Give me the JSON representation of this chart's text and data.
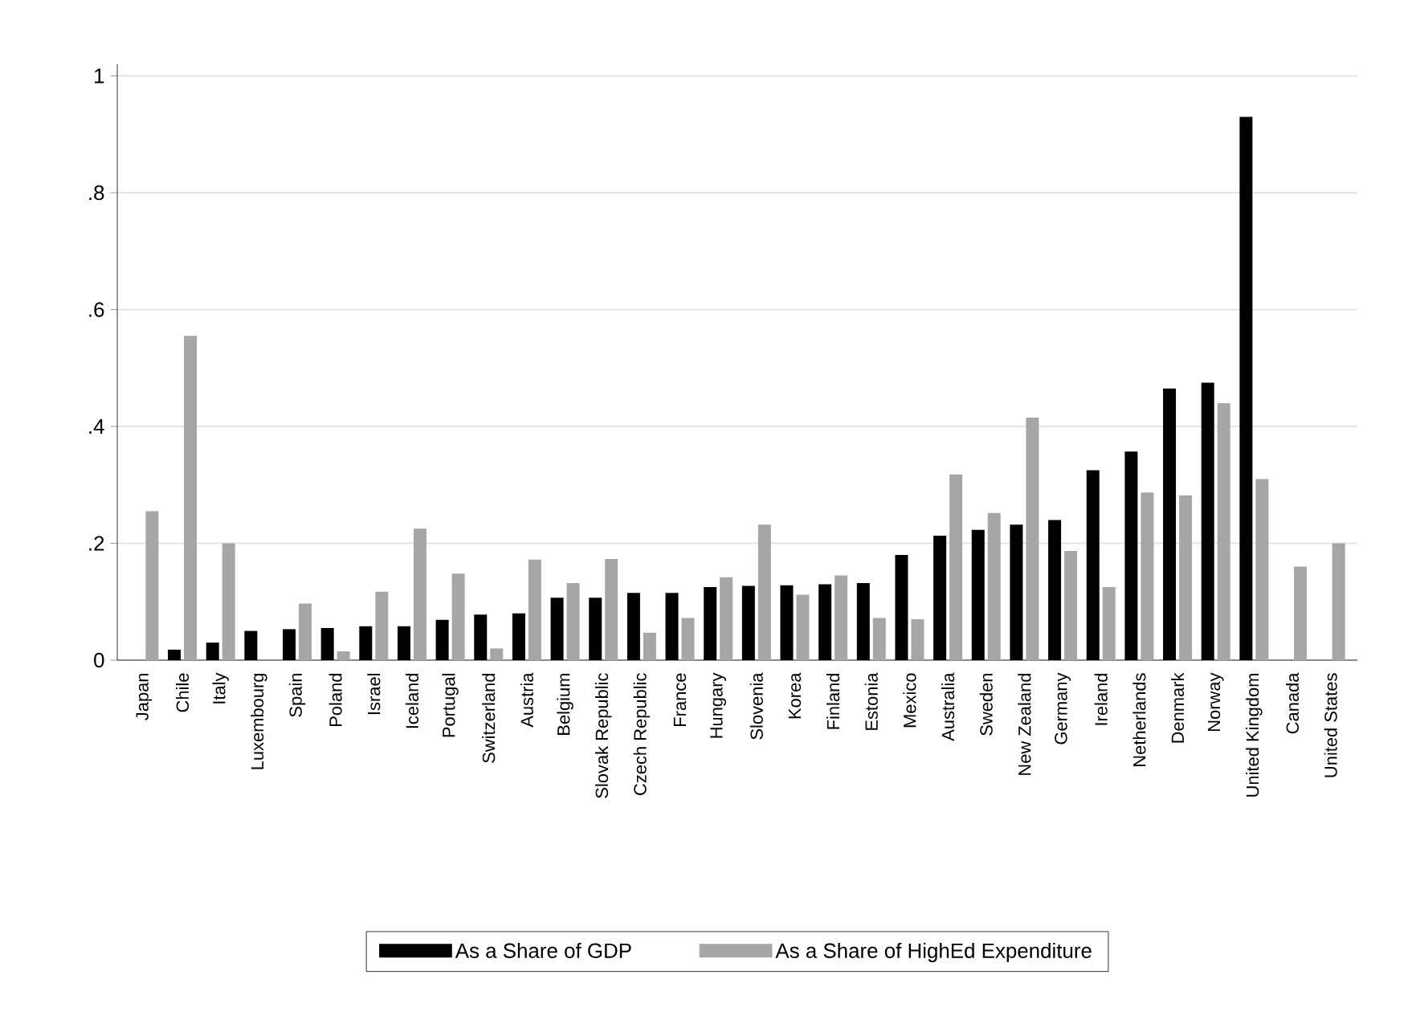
{
  "chart_data": {
    "type": "bar",
    "categories": [
      "Japan",
      "Chile",
      "Italy",
      "Luxembourg",
      "Spain",
      "Poland",
      "Israel",
      "Iceland",
      "Portugal",
      "Switzerland",
      "Austria",
      "Belgium",
      "Slovak Republic",
      "Czech Republic",
      "France",
      "Hungary",
      "Slovenia",
      "Korea",
      "Finland",
      "Estonia",
      "Mexico",
      "Australia",
      "Sweden",
      "New Zealand",
      "Germany",
      "Ireland",
      "Netherlands",
      "Denmark",
      "Norway",
      "United Kingdom",
      "Canada",
      "United States"
    ],
    "series": [
      {
        "name": "As a Share of GDP",
        "color": "#000000",
        "values": [
          null,
          0.018,
          0.03,
          0.05,
          0.053,
          0.055,
          0.058,
          0.058,
          0.069,
          0.078,
          0.08,
          0.107,
          0.107,
          0.115,
          0.115,
          0.125,
          0.127,
          0.128,
          0.13,
          0.132,
          0.18,
          0.213,
          0.223,
          0.232,
          0.24,
          0.325,
          0.357,
          0.465,
          0.475,
          0.93,
          null,
          null
        ]
      },
      {
        "name": "As a Share of HighEd Expenditure",
        "color": "#a6a6a6",
        "values": [
          0.255,
          0.555,
          0.2,
          null,
          0.097,
          0.015,
          0.117,
          0.225,
          0.148,
          0.02,
          0.172,
          0.132,
          0.173,
          0.047,
          0.072,
          0.142,
          0.232,
          0.112,
          0.145,
          0.072,
          0.07,
          0.318,
          0.252,
          0.415,
          0.187,
          0.125,
          0.287,
          0.282,
          0.44,
          0.31,
          0.16,
          0.2
        ]
      }
    ],
    "ylim": [
      0,
      1.02
    ],
    "yticks": [
      0,
      {
        "value": 0.2,
        "label": ".2"
      },
      {
        "value": 0.4,
        "label": ".4"
      },
      {
        "value": 0.6,
        "label": ".6"
      },
      {
        "value": 0.8,
        "label": ".8"
      },
      1
    ],
    "grid": "y",
    "legend": "bottom"
  }
}
